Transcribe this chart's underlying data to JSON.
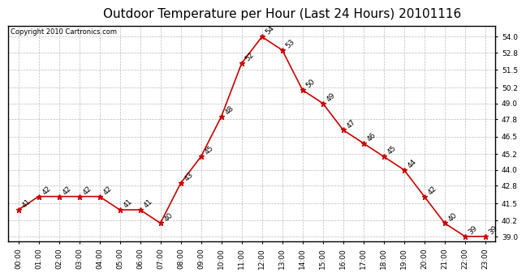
{
  "title": "Outdoor Temperature per Hour (Last 24 Hours) 20101116",
  "copyright": "Copyright 2010 Cartronics.com",
  "hours": [
    "00:00",
    "01:00",
    "02:00",
    "03:00",
    "04:00",
    "05:00",
    "06:00",
    "07:00",
    "08:00",
    "09:00",
    "10:00",
    "11:00",
    "12:00",
    "13:00",
    "14:00",
    "15:00",
    "16:00",
    "17:00",
    "18:00",
    "19:00",
    "20:00",
    "21:00",
    "22:00",
    "23:00"
  ],
  "temps": [
    41,
    42,
    42,
    42,
    42,
    41,
    41,
    40,
    43,
    45,
    48,
    52,
    54,
    53,
    50,
    49,
    47,
    46,
    45,
    44,
    42,
    40,
    39,
    39
  ],
  "line_color": "#cc0000",
  "marker": "*",
  "marker_size": 5,
  "bg_color": "#ffffff",
  "grid_color": "#bbbbbb",
  "ylim_min": 38.6,
  "ylim_max": 54.8,
  "yticks": [
    39.0,
    40.2,
    41.5,
    42.8,
    44.0,
    45.2,
    46.5,
    47.8,
    49.0,
    50.2,
    51.5,
    52.8,
    54.0
  ],
  "title_fontsize": 11,
  "label_fontsize": 6.5,
  "annot_fontsize": 6.5,
  "copyright_fontsize": 6.0
}
